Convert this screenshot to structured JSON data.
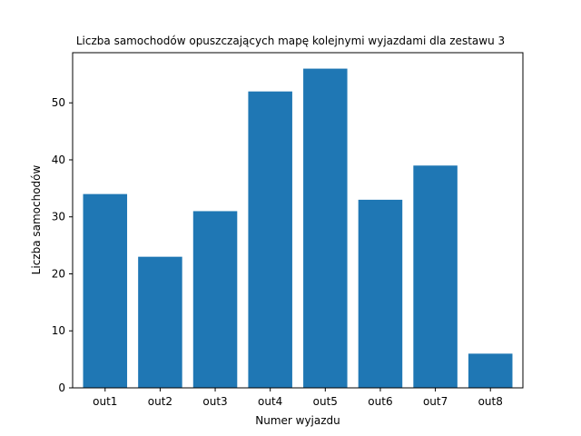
{
  "chart_data": {
    "type": "bar",
    "title": "Liczba samochodów opuszczających mapę kolejnymi wyjazdami dla zestawu 3",
    "xlabel": "Numer wyjazdu",
    "ylabel": "Liczba samochodów",
    "categories": [
      "out1",
      "out2",
      "out3",
      "out4",
      "out5",
      "out6",
      "out7",
      "out8"
    ],
    "values": [
      34,
      23,
      31,
      52,
      56,
      33,
      39,
      6
    ],
    "ylim": [
      0,
      58.8
    ],
    "yticks": [
      0,
      10,
      20,
      30,
      40,
      50
    ],
    "bar_color": "#1f77b4",
    "grid": false,
    "legend": "none"
  }
}
